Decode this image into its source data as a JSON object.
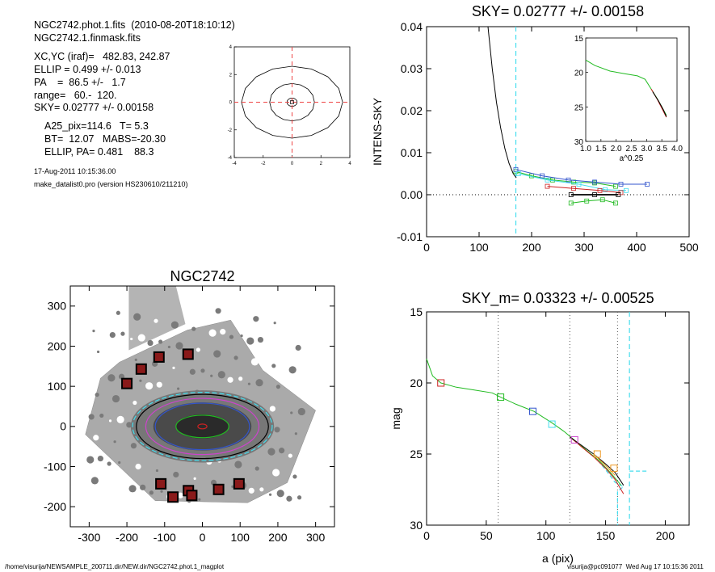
{
  "info": {
    "line1": "NGC2742.phot.1.fits  (2010-08-20T18:10:12)",
    "line2": "NGC2742.1.finmask.fits",
    "line3": "XC,YC (iraf)=   482.83, 242.87",
    "line4": "ELLIP = 0.499 +/- 0.013",
    "line5": "PA    =  86.5 +/-   1.7",
    "line6": "range=   60.-  120.",
    "line7": "SKY= 0.02777 +/- 0.00158",
    "line8": "A25_pix=114.6   T= 5.3",
    "line9": "BT=  12.07   MABS=-20.30",
    "line10": "ELLIP, PA= 0.481    88.3",
    "date": "17-Aug-2011 10:15:36.00",
    "program": "make_datalist0.pro (version HS230610/211210)"
  },
  "footer": {
    "left": "/home/visurija/NEWSAMPLE_200711.dir/NEW.dir/NGC2742.phot.1_magplot",
    "right": "visurija@pc091077  Wed Aug 17 10:15:36 2011"
  },
  "colors": {
    "cyan": "#44ddee",
    "red_dash": "#ee4444",
    "green": "#22bb22",
    "blue": "#3355cc",
    "red": "#cc2222",
    "orange": "#ee9922",
    "magenta": "#cc44cc"
  },
  "chart_data": [
    {
      "id": "contour",
      "type": "line",
      "title": "",
      "xlabel": "",
      "ylabel": "",
      "xlim": [
        -4,
        4
      ],
      "ylim": [
        -4,
        4
      ],
      "xticks": [
        "-4",
        "-2",
        "0",
        "2",
        "4"
      ],
      "yticks": [
        "-4",
        "-2",
        "0",
        "2",
        "4"
      ],
      "crosshair": {
        "x": 0,
        "y": 0
      },
      "contours": [
        {
          "a": 3.5,
          "b": 2.6
        },
        {
          "a": 1.55,
          "b": 1.35
        },
        {
          "a": 0.35,
          "b": 0.3
        }
      ]
    },
    {
      "id": "sky",
      "type": "line",
      "title": "SKY= 0.02777 +/- 0.00158",
      "xlabel": "",
      "ylabel": "INTENS-SKY",
      "xlim": [
        0,
        500
      ],
      "ylim": [
        -0.01,
        0.04
      ],
      "xticks": [
        "0",
        "100",
        "200",
        "300",
        "400",
        "500"
      ],
      "yticks": [
        "-0.01",
        "0.00",
        "0.01",
        "0.02",
        "0.03",
        "0.04"
      ],
      "vline_cyan": 170,
      "profile": [
        [
          117,
          0.04
        ],
        [
          125,
          0.03
        ],
        [
          133,
          0.022
        ],
        [
          141,
          0.016
        ],
        [
          149,
          0.011
        ],
        [
          157,
          0.0075
        ],
        [
          165,
          0.005
        ],
        [
          171,
          0.004
        ]
      ],
      "series": [
        {
          "color": "#22bb22",
          "points": [
            [
              170,
              0.0055
            ],
            [
              200,
              0.0045
            ],
            [
              240,
              0.0035
            ],
            [
              280,
              0.003
            ],
            [
              320,
              0.0028
            ],
            [
              360,
              0.002
            ]
          ]
        },
        {
          "color": "#3355cc",
          "points": [
            [
              170,
              0.006
            ],
            [
              220,
              0.0045
            ],
            [
              270,
              0.0035
            ],
            [
              320,
              0.003
            ],
            [
              370,
              0.0025
            ],
            [
              420,
              0.0025
            ]
          ]
        },
        {
          "color": "#44ddee",
          "points": [
            [
              175,
              0.005
            ],
            [
              230,
              0.0035
            ],
            [
              290,
              0.0025
            ],
            [
              340,
              0.0012
            ],
            [
              380,
              0.001
            ]
          ]
        },
        {
          "color": "#cc2222",
          "points": [
            [
              230,
              0.002
            ],
            [
              280,
              0.0015
            ],
            [
              330,
              0.001
            ],
            [
              370,
              0.0005
            ]
          ]
        },
        {
          "color": "#22bb22",
          "points": [
            [
              275,
              -0.002
            ],
            [
              305,
              -0.0015
            ],
            [
              335,
              -0.0012
            ],
            [
              360,
              -0.002
            ]
          ]
        },
        {
          "color": "#000000",
          "points": [
            [
              275,
              0.0
            ],
            [
              320,
              0.0
            ],
            [
              365,
              0.0
            ]
          ]
        }
      ],
      "inset": {
        "xlabel": "a^0.25",
        "xlim": [
          1.0,
          4.0
        ],
        "ylim": [
          30,
          15
        ],
        "xticks": [
          "1.0",
          "1.5",
          "2.0",
          "2.5",
          "3.0",
          "3.5",
          "4.0"
        ],
        "yticks": [
          "15",
          "20",
          "25",
          "30"
        ],
        "curves": [
          {
            "color": "#22bb22",
            "points": [
              [
                1.0,
                18.2
              ],
              [
                1.3,
                19.0
              ],
              [
                1.8,
                19.8
              ],
              [
                2.3,
                20.2
              ],
              [
                2.7,
                20.5
              ],
              [
                2.95,
                21.0
              ],
              [
                3.15,
                22.4
              ],
              [
                3.35,
                23.8
              ],
              [
                3.5,
                25.0
              ],
              [
                3.65,
                26.2
              ]
            ]
          },
          {
            "color": "#cc2222",
            "points": [
              [
                3.15,
                22.4
              ],
              [
                3.35,
                23.9
              ],
              [
                3.5,
                25.2
              ],
              [
                3.65,
                26.5
              ]
            ]
          },
          {
            "color": "#000000",
            "points": [
              [
                3.2,
                22.8
              ],
              [
                3.4,
                24.2
              ],
              [
                3.55,
                25.4
              ],
              [
                3.65,
                26.4
              ]
            ]
          }
        ]
      }
    },
    {
      "id": "image",
      "type": "scatter",
      "title": "NGC2742",
      "xlabel": "",
      "ylabel": "",
      "xlim": [
        -350,
        350
      ],
      "ylim": [
        -250,
        350
      ],
      "xticks": [
        "-300",
        "-200",
        "-100",
        "0",
        "100",
        "200",
        "300"
      ],
      "yticks": [
        "-200",
        "-100",
        "0",
        "100",
        "200",
        "300"
      ],
      "mask_boxes": [
        [
          -200,
          107
        ],
        [
          -162,
          143
        ],
        [
          -115,
          173
        ],
        [
          -38,
          180
        ],
        [
          -110,
          -143
        ],
        [
          -78,
          -176
        ],
        [
          -37,
          -160
        ],
        [
          -28,
          -172
        ],
        [
          43,
          -157
        ],
        [
          97,
          -143
        ]
      ],
      "ellipses": [
        {
          "a": 185,
          "b": 85,
          "color": "#44ddee"
        },
        {
          "a": 175,
          "b": 80,
          "color": "#000000"
        },
        {
          "a": 150,
          "b": 70,
          "color": "#cc44cc"
        },
        {
          "a": 125,
          "b": 58,
          "color": "#3355cc"
        },
        {
          "a": 70,
          "b": 28,
          "color": "#22bb22"
        },
        {
          "a": 12,
          "b": 6,
          "color": "#cc2222"
        }
      ]
    },
    {
      "id": "mag",
      "type": "line",
      "title": "SKY_m=  0.03323 +/- 0.00525",
      "xlabel": "a (pix)",
      "ylabel": "mag",
      "xlim": [
        0,
        220
      ],
      "ylim": [
        30,
        15
      ],
      "xticks": [
        "0",
        "50",
        "100",
        "150",
        "200"
      ],
      "yticks": [
        "15",
        "20",
        "25",
        "30"
      ],
      "vlines_dotted": [
        60,
        120,
        160
      ],
      "vline_cyan": 170,
      "series": [
        {
          "color": "#22bb22",
          "points": [
            [
              0,
              18.3
            ],
            [
              5,
              19.5
            ],
            [
              12,
              20.0
            ],
            [
              25,
              20.3
            ],
            [
              40,
              20.5
            ],
            [
              55,
              20.7
            ],
            [
              62,
              21.0
            ],
            [
              75,
              21.5
            ],
            [
              90,
              22.0
            ],
            [
              105,
              22.8
            ],
            [
              115,
              23.4
            ],
            [
              125,
              24.1
            ],
            [
              135,
              24.8
            ],
            [
              145,
              25.5
            ],
            [
              155,
              26.4
            ],
            [
              163,
              27.2
            ]
          ]
        },
        {
          "color": "#cc2222",
          "points": [
            [
              120,
              23.8
            ],
            [
              130,
              24.5
            ],
            [
              140,
              25.2
            ],
            [
              150,
              26.0
            ],
            [
              158,
              26.8
            ],
            [
              165,
              27.8
            ]
          ]
        },
        {
          "color": "#000000",
          "points": [
            [
              120,
              23.8
            ],
            [
              130,
              24.4
            ],
            [
              140,
              25.0
            ],
            [
              150,
              25.7
            ],
            [
              158,
              26.3
            ],
            [
              165,
              27.2
            ]
          ]
        },
        {
          "color": "#ee9922",
          "points": [
            [
              140,
              25.0
            ],
            [
              150,
              25.8
            ],
            [
              158,
              26.5
            ]
          ]
        }
      ],
      "cyan_branch": [
        [
          140,
          25.1
        ],
        [
          150,
          26.1
        ],
        [
          158,
          27.0
        ],
        [
          165,
          27.3
        ],
        [
          160,
          27.6
        ],
        [
          160,
          30.0
        ]
      ],
      "cyan_flat": [
        [
          170,
          26.2
        ],
        [
          185,
          26.2
        ]
      ],
      "markers": [
        {
          "x": 12,
          "y": 20.0,
          "color": "#cc2222"
        },
        {
          "x": 62,
          "y": 21.0,
          "color": "#22bb22"
        },
        {
          "x": 89,
          "y": 22.0,
          "color": "#3355cc"
        },
        {
          "x": 105,
          "y": 22.9,
          "color": "#44ddee"
        },
        {
          "x": 124,
          "y": 24.0,
          "color": "#cc44cc"
        },
        {
          "x": 143,
          "y": 25.0,
          "color": "#ee9922"
        },
        {
          "x": 157,
          "y": 26.0,
          "color": "#ee9922"
        }
      ]
    }
  ]
}
